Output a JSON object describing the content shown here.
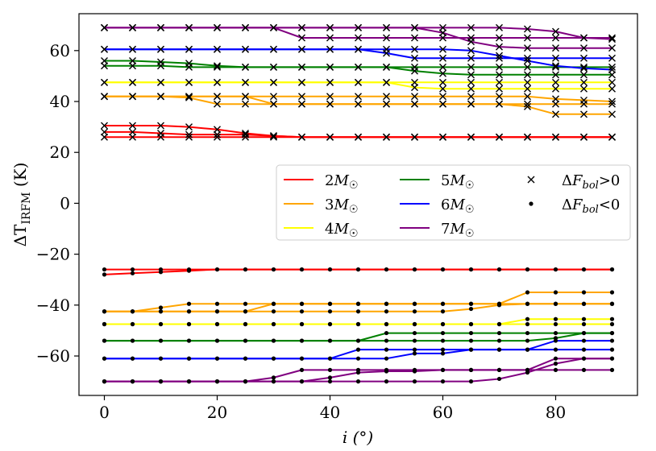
{
  "chart_data": {
    "type": "line",
    "xlabel": "i (°)",
    "ylabel": "ΔT_IRFM (K)",
    "xlim": [
      -4.5,
      94.5
    ],
    "ylim": [
      -75.5,
      74.5
    ],
    "xticks": [
      0,
      20,
      40,
      60,
      80
    ],
    "yticks": [
      -60,
      -40,
      -20,
      0,
      20,
      40,
      60
    ],
    "xtick_labels": [
      "0",
      "20",
      "40",
      "60",
      "80"
    ],
    "ytick_labels": [
      "−60",
      "−40",
      "−20",
      "0",
      "20",
      "40",
      "60"
    ],
    "x": [
      0,
      5,
      10,
      15,
      20,
      25,
      30,
      35,
      40,
      45,
      50,
      55,
      60,
      65,
      70,
      75,
      80,
      85,
      90
    ],
    "legend": {
      "location": "center-right",
      "mass_entries": [
        {
          "label": "2M☉",
          "color": "#ff0000"
        },
        {
          "label": "3M☉",
          "color": "#ffa500"
        },
        {
          "label": "4M☉",
          "color": "#ffff00"
        },
        {
          "label": "5M☉",
          "color": "#008000"
        },
        {
          "label": "6M☉",
          "color": "#0000ff"
        },
        {
          "label": "7M☉",
          "color": "#800080"
        }
      ],
      "marker_entries": [
        {
          "label": "ΔF_bol>0",
          "marker": "x"
        },
        {
          "label": "ΔF_bol<0",
          "marker": "dot"
        }
      ]
    },
    "series": [
      {
        "name": "2M☉ upper a",
        "color": "#ff0000",
        "marker": "x",
        "values": [
          30.5,
          30.5,
          30.5,
          30,
          29,
          27.5,
          26.5,
          26,
          26,
          26,
          26,
          26,
          26,
          26,
          26,
          26,
          26,
          26,
          26
        ]
      },
      {
        "name": "2M☉ upper b",
        "color": "#ff0000",
        "marker": "x",
        "values": [
          28,
          28,
          27.5,
          27,
          27,
          27,
          26.5,
          26,
          26,
          26,
          26,
          26,
          26,
          26,
          26,
          26,
          26,
          26,
          26
        ]
      },
      {
        "name": "2M☉ upper c",
        "color": "#ff0000",
        "marker": "x",
        "values": [
          26,
          26,
          26,
          26,
          26,
          26,
          26,
          26,
          26,
          26,
          26,
          26,
          26,
          26,
          26,
          26,
          26,
          26,
          26
        ]
      },
      {
        "name": "3M☉ upper a",
        "color": "#ffa500",
        "marker": "x",
        "values": [
          42,
          42,
          42,
          42,
          42,
          42,
          42,
          42,
          42,
          42,
          42,
          42,
          42,
          42,
          42,
          42,
          41,
          40.5,
          40
        ]
      },
      {
        "name": "3M☉ upper b",
        "color": "#ffa500",
        "marker": "x",
        "values": [
          42,
          42,
          42,
          41.5,
          39,
          39,
          39,
          39,
          39,
          39,
          39,
          39,
          39,
          39,
          39,
          39,
          39,
          39,
          39
        ]
      },
      {
        "name": "3M☉ upper c",
        "color": "#ffa500",
        "marker": "x",
        "values": [
          42,
          42,
          42,
          42,
          42,
          42,
          39,
          39,
          39,
          39,
          39,
          39,
          39,
          39,
          39,
          38,
          35,
          35,
          35
        ]
      },
      {
        "name": "4M☉ upper a",
        "color": "#ffff00",
        "marker": "x",
        "values": [
          47.5,
          47.5,
          47.5,
          47.5,
          47.5,
          47.5,
          47.5,
          47.5,
          47.5,
          47.5,
          47.5,
          47.5,
          47.5,
          47.5,
          47.5,
          47.5,
          47.5,
          47.5,
          47.5
        ]
      },
      {
        "name": "4M☉ upper b",
        "color": "#ffff00",
        "marker": "x",
        "values": [
          47.5,
          47.5,
          47.5,
          47.5,
          47.5,
          47.5,
          47.5,
          47.5,
          47.5,
          47.5,
          47.5,
          45.5,
          45,
          45,
          45,
          45,
          45,
          45,
          45
        ]
      },
      {
        "name": "5M☉ upper a",
        "color": "#008000",
        "marker": "x",
        "values": [
          56,
          56,
          55.5,
          55,
          54,
          53.5,
          53.5,
          53.5,
          53.5,
          53.5,
          53.5,
          53.5,
          53.5,
          53.5,
          53.5,
          53.5,
          53.5,
          53.5,
          53.5
        ]
      },
      {
        "name": "5M☉ upper b",
        "color": "#008000",
        "marker": "x",
        "values": [
          54,
          54,
          54,
          53.5,
          53.5,
          53.5,
          53.5,
          53.5,
          53.5,
          53.5,
          53.5,
          52,
          51,
          50.5,
          50.5,
          50.5,
          50.5,
          50.5,
          50.5
        ]
      },
      {
        "name": "6M☉ upper a",
        "color": "#0000ff",
        "marker": "x",
        "values": [
          60.5,
          60.5,
          60.5,
          60.5,
          60.5,
          60.5,
          60.5,
          60.5,
          60.5,
          60.5,
          59,
          57,
          57,
          57,
          57,
          57,
          57,
          57,
          57
        ]
      },
      {
        "name": "6M☉ upper b",
        "color": "#0000ff",
        "marker": "x",
        "values": [
          60.5,
          60.5,
          60.5,
          60.5,
          60.5,
          60.5,
          60.5,
          60.5,
          60.5,
          60.5,
          60.5,
          60.5,
          60.5,
          60,
          58,
          56,
          54,
          53,
          52.5
        ]
      },
      {
        "name": "7M☉ upper a",
        "color": "#800080",
        "marker": "x",
        "values": [
          69,
          69,
          69,
          69,
          69,
          69,
          69,
          69,
          69,
          69,
          69,
          69,
          69,
          69,
          69,
          68.5,
          67.5,
          65,
          64.5
        ]
      },
      {
        "name": "7M☉ upper b",
        "color": "#800080",
        "marker": "x",
        "values": [
          69,
          69,
          69,
          69,
          69,
          69,
          69,
          65,
          65,
          65,
          65,
          65,
          65,
          65,
          65,
          65,
          65,
          65,
          65
        ]
      },
      {
        "name": "7M☉ upper c",
        "color": "#800080",
        "marker": "x",
        "values": [
          69,
          69,
          69,
          69,
          69,
          69,
          69,
          69,
          69,
          69,
          69,
          69,
          67,
          63.5,
          61.5,
          61,
          61,
          61,
          61
        ]
      },
      {
        "name": "2M☉ lower a",
        "color": "#ff0000",
        "marker": "dot",
        "values": [
          -26,
          -26,
          -26,
          -26,
          -26,
          -26,
          -26,
          -26,
          -26,
          -26,
          -26,
          -26,
          -26,
          -26,
          -26,
          -26,
          -26,
          -26,
          -26
        ]
      },
      {
        "name": "2M☉ lower b",
        "color": "#ff0000",
        "marker": "dot",
        "values": [
          -28,
          -27.5,
          -27,
          -26.5,
          -26,
          -26,
          -26,
          -26,
          -26,
          -26,
          -26,
          -26,
          -26,
          -26,
          -26,
          -26,
          -26,
          -26,
          -26
        ]
      },
      {
        "name": "3M☉ lower a",
        "color": "#ffa500",
        "marker": "dot",
        "values": [
          -42.5,
          -42.5,
          -41,
          -39.5,
          -39.5,
          -39.5,
          -39.5,
          -39.5,
          -39.5,
          -39.5,
          -39.5,
          -39.5,
          -39.5,
          -39.5,
          -39.5,
          -35,
          -35,
          -35,
          -35
        ]
      },
      {
        "name": "3M☉ lower b",
        "color": "#ffa500",
        "marker": "dot",
        "values": [
          -42.5,
          -42.5,
          -42.5,
          -42.5,
          -42.5,
          -42.5,
          -42.5,
          -42.5,
          -42.5,
          -42.5,
          -42.5,
          -42.5,
          -42.5,
          -41.5,
          -40,
          -39.5,
          -39.5,
          -39.5,
          -39.5
        ]
      },
      {
        "name": "3M☉ lower c",
        "color": "#ffa500",
        "marker": "dot",
        "values": [
          -42.5,
          -42.5,
          -42.5,
          -42.5,
          -42.5,
          -42.5,
          -39.5,
          -39.5,
          -39.5,
          -39.5,
          -39.5,
          -39.5,
          -39.5,
          -39.5,
          -39.5,
          -39.5,
          -39.5,
          -39.5,
          -39.5
        ]
      },
      {
        "name": "4M☉ lower a",
        "color": "#ffff00",
        "marker": "dot",
        "values": [
          -47.5,
          -47.5,
          -47.5,
          -47.5,
          -47.5,
          -47.5,
          -47.5,
          -47.5,
          -47.5,
          -47.5,
          -47.5,
          -47.5,
          -47.5,
          -47.5,
          -47.5,
          -47.5,
          -47.5,
          -47.5,
          -47.5
        ]
      },
      {
        "name": "4M☉ lower b",
        "color": "#ffff00",
        "marker": "dot",
        "values": [
          -47.5,
          -47.5,
          -47.5,
          -47.5,
          -47.5,
          -47.5,
          -47.5,
          -47.5,
          -47.5,
          -47.5,
          -47.5,
          -47.5,
          -47.5,
          -47.5,
          -47.5,
          -45.5,
          -45.5,
          -45.5,
          -45.5
        ]
      },
      {
        "name": "5M☉ lower a",
        "color": "#008000",
        "marker": "dot",
        "values": [
          -54,
          -54,
          -54,
          -54,
          -54,
          -54,
          -54,
          -54,
          -54,
          -54,
          -51,
          -51,
          -51,
          -51,
          -51,
          -51,
          -51,
          -51,
          -51
        ]
      },
      {
        "name": "5M☉ lower b",
        "color": "#008000",
        "marker": "dot",
        "values": [
          -54,
          -54,
          -54,
          -54,
          -54,
          -54,
          -54,
          -54,
          -54,
          -54,
          -54,
          -54,
          -54,
          -54,
          -54,
          -54,
          -53,
          -51,
          -51
        ]
      },
      {
        "name": "6M☉ lower a",
        "color": "#0000ff",
        "marker": "dot",
        "values": [
          -61,
          -61,
          -61,
          -61,
          -61,
          -61,
          -61,
          -61,
          -61,
          -57.5,
          -57.5,
          -57.5,
          -57.5,
          -57.5,
          -57.5,
          -57.5,
          -57.5,
          -57.5,
          -57.5
        ]
      },
      {
        "name": "6M☉ lower b",
        "color": "#0000ff",
        "marker": "dot",
        "values": [
          -61,
          -61,
          -61,
          -61,
          -61,
          -61,
          -61,
          -61,
          -61,
          -61,
          -61,
          -59,
          -59,
          -57.5,
          -57.5,
          -57.5,
          -54,
          -54,
          -54
        ]
      },
      {
        "name": "7M☉ lower a",
        "color": "#800080",
        "marker": "dot",
        "values": [
          -70,
          -70,
          -70,
          -70,
          -70,
          -70,
          -68.5,
          -65.5,
          -65.5,
          -65.5,
          -65.5,
          -65.5,
          -65.5,
          -65.5,
          -65.5,
          -65.5,
          -65.5,
          -65.5,
          -65.5
        ]
      },
      {
        "name": "7M☉ lower b",
        "color": "#800080",
        "marker": "dot",
        "values": [
          -70,
          -70,
          -70,
          -70,
          -70,
          -70,
          -70,
          -70,
          -68.5,
          -66.5,
          -66,
          -66,
          -65.5,
          -65.5,
          -65.5,
          -65.5,
          -61,
          -61,
          -61
        ]
      },
      {
        "name": "7M☉ lower c",
        "color": "#800080",
        "marker": "dot",
        "values": [
          -70,
          -70,
          -70,
          -70,
          -70,
          -70,
          -70,
          -70,
          -70,
          -70,
          -70,
          -70,
          -70,
          -70,
          -69,
          -66.5,
          -63,
          -61,
          -61
        ]
      }
    ]
  }
}
